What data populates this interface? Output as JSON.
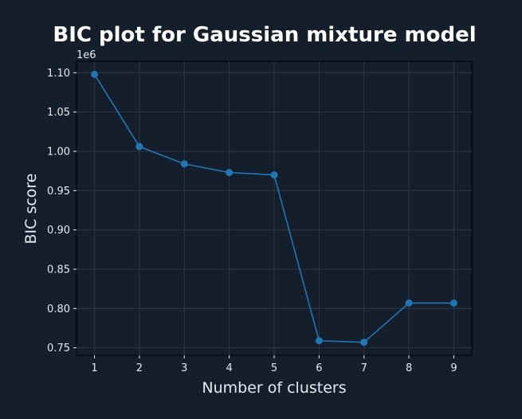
{
  "chart_data": {
    "type": "line",
    "title": "BIC plot for Gaussian mixture model",
    "xlabel": "Number of clusters",
    "ylabel": "BIC score",
    "y_scale_label": "1e6",
    "x": [
      1,
      2,
      3,
      4,
      5,
      6,
      7,
      8,
      9
    ],
    "series": [
      {
        "values": [
          1.098,
          1.006,
          0.984,
          0.973,
          0.97,
          0.759,
          0.757,
          0.807,
          0.807
        ],
        "color": "#1f77b4",
        "marker": "circle"
      }
    ],
    "xticks": [
      "1",
      "2",
      "3",
      "4",
      "5",
      "6",
      "7",
      "8",
      "9"
    ],
    "yticks": [
      "0.75",
      "0.80",
      "0.85",
      "0.90",
      "0.95",
      "1.00",
      "1.05",
      "1.10"
    ],
    "xlim": [
      0.6,
      9.4
    ],
    "ylim": [
      0.7405,
      1.1145
    ],
    "grid": true
  }
}
